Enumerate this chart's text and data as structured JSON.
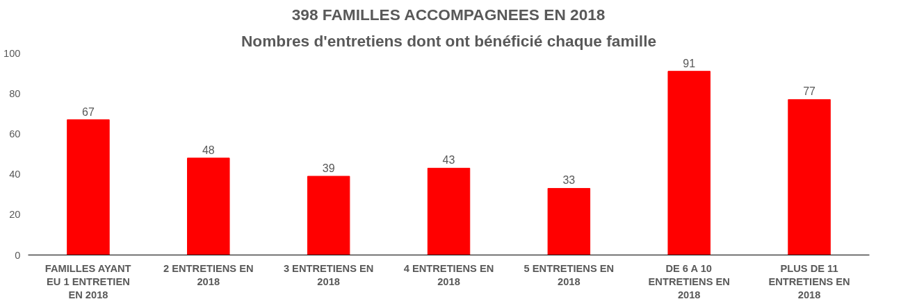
{
  "chart_data": {
    "type": "bar",
    "title": "398 FAMILLES ACCOMPAGNEES EN 2018",
    "subtitle": "Nombres d'entretiens dont ont bénéficié chaque famille",
    "categories": [
      "FAMILLES AYANT EU 1 ENTRETIEN EN 2018",
      "2 ENTRETIENS EN 2018",
      "3 ENTRETIENS EN 2018",
      "4 ENTRETIENS EN 2018",
      "5 ENTRETIENS EN 2018",
      "DE 6 A 10 ENTRETIENS EN 2018",
      "PLUS DE 11 ENTRETIENS EN 2018"
    ],
    "values": [
      67,
      48,
      39,
      43,
      33,
      91,
      77
    ],
    "color": "#ff0000",
    "ylim": [
      0,
      100
    ],
    "yticks": [
      0,
      20,
      40,
      60,
      80,
      100
    ],
    "grid": false,
    "data_labels": true
  }
}
